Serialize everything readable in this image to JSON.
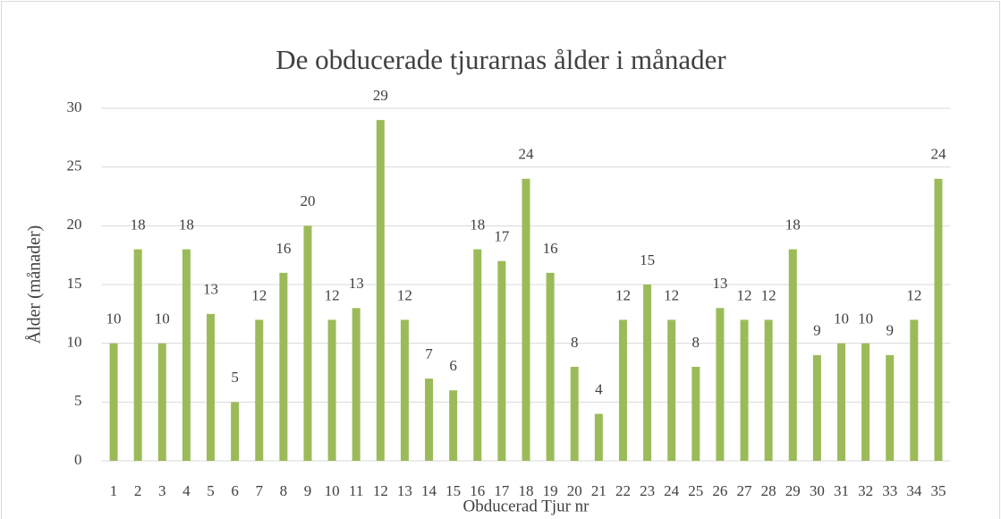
{
  "chart_data": {
    "type": "bar",
    "title": "De obducerade tjurarnas ålder i månader",
    "x_label": "Obducerad Tjur nr",
    "y_label": "Ålder  (månader)",
    "categories": [
      "1",
      "2",
      "3",
      "4",
      "5",
      "6",
      "7",
      "8",
      "9",
      "10",
      "11",
      "12",
      "13",
      "14",
      "15",
      "16",
      "17",
      "18",
      "19",
      "20",
      "21",
      "22",
      "23",
      "24",
      "25",
      "26",
      "27",
      "28",
      "29",
      "30",
      "31",
      "32",
      "33",
      "34",
      "35"
    ],
    "values": [
      10,
      18,
      10,
      18,
      12.5,
      5,
      12,
      16,
      20,
      12,
      13,
      29,
      12,
      7,
      6,
      18,
      17,
      24,
      16,
      8,
      4,
      12,
      15,
      12,
      8,
      13,
      12,
      12,
      18,
      9,
      10,
      10,
      9,
      12,
      24
    ],
    "value_labels": [
      "10",
      "18",
      "10",
      "18",
      "13",
      "5",
      "12",
      "16",
      "20",
      "12",
      "13",
      "29",
      "12",
      "7",
      "6",
      "18",
      "17",
      "24",
      "16",
      "8",
      "4",
      "12",
      "15",
      "12",
      "8",
      "13",
      "12",
      "12",
      "18",
      "9",
      "10",
      "10",
      "9",
      "12",
      "24"
    ],
    "color": "#9bbb59",
    "ylim": [
      0,
      30
    ],
    "yticks": [
      0,
      5,
      10,
      15,
      20,
      25,
      30
    ],
    "grid": true
  }
}
